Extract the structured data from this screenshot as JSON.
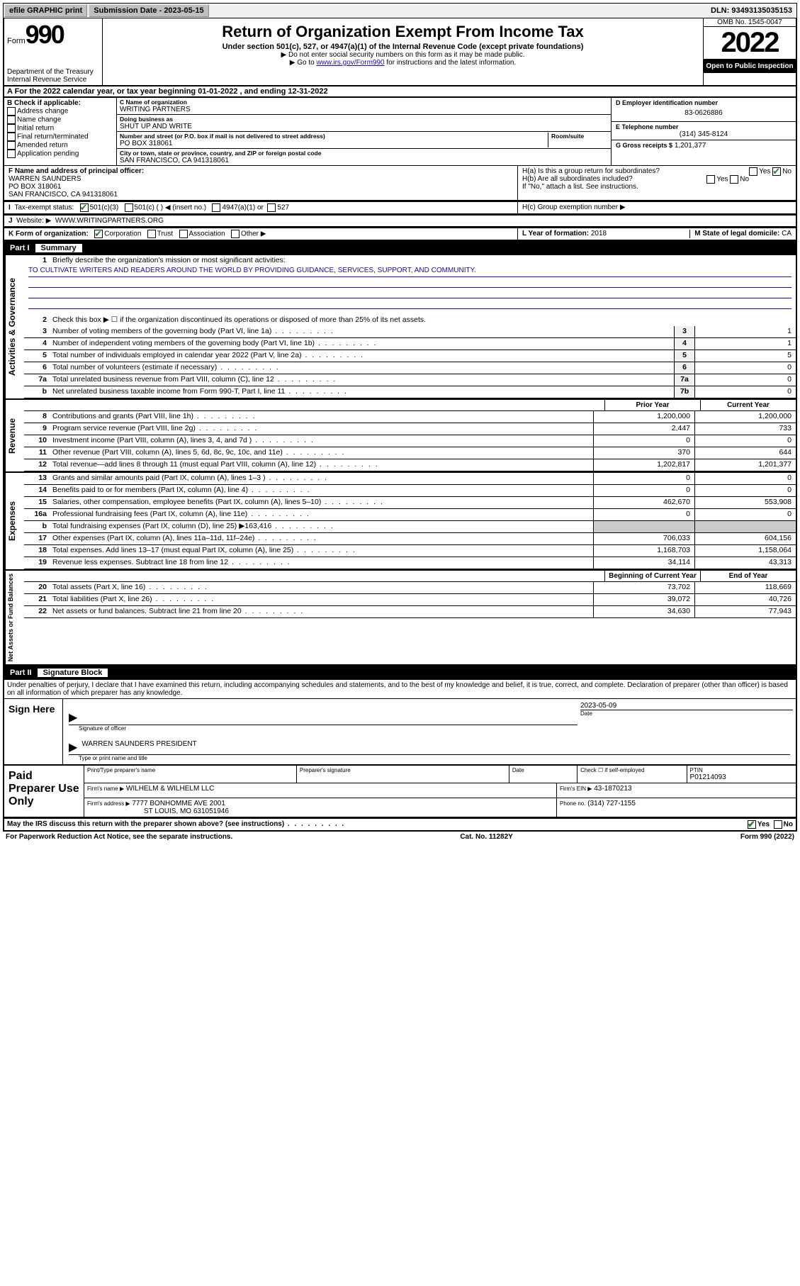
{
  "top_bar": {
    "efile": "efile GRAPHIC print",
    "submission": "Submission Date - 2023-05-15",
    "dln": "DLN: 93493135035153"
  },
  "header": {
    "form_word": "Form",
    "form_num": "990",
    "dept": "Department of the Treasury",
    "irs": "Internal Revenue Service",
    "title": "Return of Organization Exempt From Income Tax",
    "subtitle": "Under section 501(c), 527, or 4947(a)(1) of the Internal Revenue Code (except private foundations)",
    "note1": "▶ Do not enter social security numbers on this form as it may be made public.",
    "note2_pre": "▶ Go to ",
    "note2_link": "www.irs.gov/Form990",
    "note2_post": " for instructions and the latest information.",
    "omb": "OMB No. 1545-0047",
    "year": "2022",
    "open": "Open to Public Inspection"
  },
  "row_a": "A For the 2022 calendar year, or tax year beginning 01-01-2022   , and ending 12-31-2022",
  "col_b": {
    "label": "B Check if applicable:",
    "opts": [
      "Address change",
      "Name change",
      "Initial return",
      "Final return/terminated",
      "Amended return",
      "Application pending"
    ]
  },
  "col_c": {
    "name_label": "C Name of organization",
    "name": "WRITING PARTNERS",
    "dba_label": "Doing business as",
    "dba": "SHUT UP AND WRITE",
    "addr_label": "Number and street (or P.O. box if mail is not delivered to street address)",
    "room_label": "Room/suite",
    "addr": "PO BOX 318061",
    "city_label": "City or town, state or province, country, and ZIP or foreign postal code",
    "city": "SAN FRANCISCO, CA  941318061"
  },
  "col_d": {
    "d_label": "D Employer identification number",
    "ein": "83-0626886",
    "e_label": "E Telephone number",
    "phone": "(314) 345-8124",
    "g_label": "G Gross receipts $",
    "gross": "1,201,377"
  },
  "row_f": {
    "f_label": "F Name and address of principal officer:",
    "name": "WARREN SAUNDERS",
    "addr1": "PO BOX 318061",
    "addr2": "SAN FRANCISCO, CA  941318061",
    "ha": "H(a)  Is this a group return for subordinates?",
    "yes": "Yes",
    "no": "No",
    "hb": "H(b)  Are all subordinates included?",
    "hb_note": "If \"No,\" attach a list. See instructions."
  },
  "row_i": {
    "i_label": "Tax-exempt status:",
    "opt1": "501(c)(3)",
    "opt2": "501(c) (  ) ◀ (insert no.)",
    "opt3": "4947(a)(1) or",
    "opt4": "527",
    "hc": "H(c)  Group exemption number ▶"
  },
  "row_j": {
    "j_label": "Website: ▶",
    "site": "WWW.WRITINGPARTNERS.ORG"
  },
  "row_k": {
    "k_label": "K Form of organization:",
    "opts": [
      "Corporation",
      "Trust",
      "Association",
      "Other ▶"
    ],
    "l_label": "L Year of formation: ",
    "l_val": "2018",
    "m_label": "M State of legal domicile: ",
    "m_val": "CA"
  },
  "part1": {
    "label": "Part I",
    "title": "Summary"
  },
  "summary": {
    "line1_label": "Briefly describe the organization's mission or most significant activities:",
    "mission": "TO CULTIVATE WRITERS AND READERS AROUND THE WORLD BY PROVIDING GUIDANCE, SERVICES, SUPPORT, AND COMMUNITY.",
    "line2": "Check this box ▶ ☐  if the organization discontinued its operations or disposed of more than 25% of its net assets.",
    "governance": [
      {
        "n": "3",
        "d": "Number of voting members of the governing body (Part VI, line 1a)",
        "b": "3",
        "v": "1"
      },
      {
        "n": "4",
        "d": "Number of independent voting members of the governing body (Part VI, line 1b)",
        "b": "4",
        "v": "1"
      },
      {
        "n": "5",
        "d": "Total number of individuals employed in calendar year 2022 (Part V, line 2a)",
        "b": "5",
        "v": "5"
      },
      {
        "n": "6",
        "d": "Total number of volunteers (estimate if necessary)",
        "b": "6",
        "v": "0"
      },
      {
        "n": "7a",
        "d": "Total unrelated business revenue from Part VIII, column (C), line 12",
        "b": "7a",
        "v": "0"
      },
      {
        "n": "b",
        "d": "Net unrelated business taxable income from Form 990-T, Part I, line 11",
        "b": "7b",
        "v": "0"
      }
    ],
    "col_prior": "Prior Year",
    "col_current": "Current Year",
    "revenue": [
      {
        "n": "8",
        "d": "Contributions and grants (Part VIII, line 1h)",
        "p": "1,200,000",
        "c": "1,200,000"
      },
      {
        "n": "9",
        "d": "Program service revenue (Part VIII, line 2g)",
        "p": "2,447",
        "c": "733"
      },
      {
        "n": "10",
        "d": "Investment income (Part VIII, column (A), lines 3, 4, and 7d )",
        "p": "0",
        "c": "0"
      },
      {
        "n": "11",
        "d": "Other revenue (Part VIII, column (A), lines 5, 6d, 8c, 9c, 10c, and 11e)",
        "p": "370",
        "c": "644"
      },
      {
        "n": "12",
        "d": "Total revenue—add lines 8 through 11 (must equal Part VIII, column (A), line 12)",
        "p": "1,202,817",
        "c": "1,201,377"
      }
    ],
    "expenses": [
      {
        "n": "13",
        "d": "Grants and similar amounts paid (Part IX, column (A), lines 1–3 )",
        "p": "0",
        "c": "0"
      },
      {
        "n": "14",
        "d": "Benefits paid to or for members (Part IX, column (A), line 4)",
        "p": "0",
        "c": "0"
      },
      {
        "n": "15",
        "d": "Salaries, other compensation, employee benefits (Part IX, column (A), lines 5–10)",
        "p": "462,670",
        "c": "553,908"
      },
      {
        "n": "16a",
        "d": "Professional fundraising fees (Part IX, column (A), line 11e)",
        "p": "0",
        "c": "0"
      },
      {
        "n": "b",
        "d": "Total fundraising expenses (Part IX, column (D), line 25) ▶163,416",
        "p": "",
        "c": ""
      },
      {
        "n": "17",
        "d": "Other expenses (Part IX, column (A), lines 11a–11d, 11f–24e)",
        "p": "706,033",
        "c": "604,156"
      },
      {
        "n": "18",
        "d": "Total expenses. Add lines 13–17 (must equal Part IX, column (A), line 25)",
        "p": "1,168,703",
        "c": "1,158,064"
      },
      {
        "n": "19",
        "d": "Revenue less expenses. Subtract line 18 from line 12",
        "p": "34,114",
        "c": "43,313"
      }
    ],
    "col_begin": "Beginning of Current Year",
    "col_end": "End of Year",
    "netassets": [
      {
        "n": "20",
        "d": "Total assets (Part X, line 16)",
        "p": "73,702",
        "c": "118,669"
      },
      {
        "n": "21",
        "d": "Total liabilities (Part X, line 26)",
        "p": "39,072",
        "c": "40,726"
      },
      {
        "n": "22",
        "d": "Net assets or fund balances. Subtract line 21 from line 20",
        "p": "34,630",
        "c": "77,943"
      }
    ],
    "vlabels": {
      "gov": "Activities & Governance",
      "rev": "Revenue",
      "exp": "Expenses",
      "net": "Net Assets or Fund Balances"
    }
  },
  "part2": {
    "label": "Part II",
    "title": "Signature Block",
    "perjury": "Under penalties of perjury, I declare that I have examined this return, including accompanying schedules and statements, and to the best of my knowledge and belief, it is true, correct, and complete. Declaration of preparer (other than officer) is based on all information of which preparer has any knowledge."
  },
  "sign": {
    "label": "Sign Here",
    "sig_label": "Signature of officer",
    "date_label": "Date",
    "date": "2023-05-09",
    "name": "WARREN SAUNDERS  PRESIDENT",
    "name_label": "Type or print name and title"
  },
  "paid": {
    "label": "Paid Preparer Use Only",
    "h1": "Print/Type preparer's name",
    "h2": "Preparer's signature",
    "h3": "Date",
    "h4_a": "Check ☐ if self-employed",
    "h4_b": "PTIN",
    "ptin": "P01214093",
    "firm_name_l": "Firm's name   ▶",
    "firm_name": "WILHELM & WILHELM LLC",
    "firm_ein_l": "Firm's EIN ▶",
    "firm_ein": "43-1870213",
    "firm_addr_l": "Firm's address ▶",
    "firm_addr1": "7777 BONHOMME AVE 2001",
    "firm_addr2": "ST LOUIS, MO  631051946",
    "phone_l": "Phone no.",
    "phone": "(314) 727-1155"
  },
  "footer": {
    "discuss": "May the IRS discuss this return with the preparer shown above? (see instructions)",
    "yes": "Yes",
    "no": "No",
    "paperwork": "For Paperwork Reduction Act Notice, see the separate instructions.",
    "cat": "Cat. No. 11282Y",
    "form": "Form 990 (2022)"
  }
}
